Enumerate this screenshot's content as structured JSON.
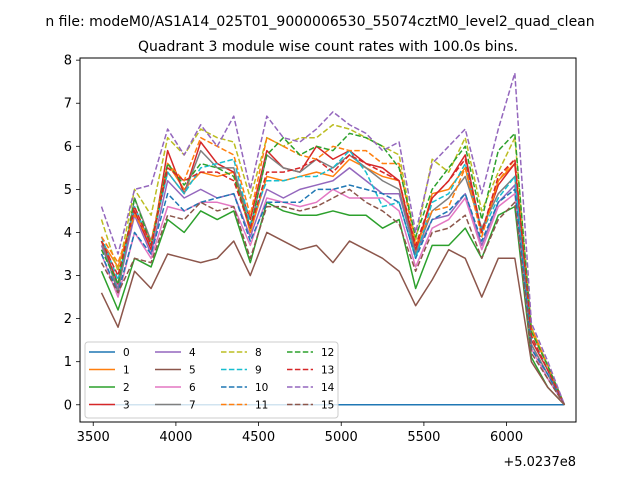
{
  "chart_data": {
    "type": "line",
    "suptitle": "n file: modeM0/AS1A14_025T01_9000006530_55074cztM0_level2_quad_clean",
    "title": "Quadrant 3 module wise count rates with 100.0s bins.",
    "xlabel": "",
    "ylabel": "",
    "x_offset_label": "+5.0237e8",
    "xlim": [
      3420,
      6420
    ],
    "ylim": [
      -0.4,
      8.05
    ],
    "xticks": [
      3500,
      4000,
      4500,
      5000,
      5500,
      6000
    ],
    "xtick_labels": [
      "3500",
      "4000",
      "4500",
      "5000",
      "5500",
      "6000"
    ],
    "yticks": [
      0,
      1,
      2,
      3,
      4,
      5,
      6,
      7,
      8
    ],
    "ytick_labels": [
      "0",
      "1",
      "2",
      "3",
      "4",
      "5",
      "6",
      "7",
      "8"
    ],
    "grid": false,
    "legend_position": "lower-left",
    "legend_columns": 4,
    "x": [
      3550,
      3650,
      3750,
      3850,
      3950,
      4050,
      4150,
      4250,
      4350,
      4450,
      4550,
      4650,
      4750,
      4850,
      4950,
      5050,
      5150,
      5250,
      5350,
      5450,
      5550,
      5650,
      5750,
      5850,
      5950,
      6050,
      6150,
      6250,
      6350
    ],
    "series": [
      {
        "name": "0",
        "color": "#1f77b4",
        "dash": "solid",
        "values": [
          0,
          0,
          0,
          0,
          0,
          0,
          0,
          0,
          0,
          0,
          0,
          0,
          0,
          0,
          0,
          0,
          0,
          0,
          0,
          0,
          0,
          0,
          0,
          0,
          0,
          0,
          0,
          0,
          0
        ]
      },
      {
        "name": "1",
        "color": "#ff7f0e",
        "dash": "solid",
        "values": [
          3.8,
          3.2,
          4.5,
          3.6,
          5.6,
          5.0,
          5.4,
          5.3,
          5.4,
          4.0,
          5.3,
          5.2,
          5.3,
          5.4,
          5.3,
          5.7,
          5.5,
          5.3,
          5.2,
          3.5,
          4.9,
          5.0,
          5.5,
          4.0,
          5.2,
          5.6,
          1.7,
          0.9,
          0.0
        ]
      },
      {
        "name": "2",
        "color": "#2ca02c",
        "dash": "solid",
        "values": [
          3.1,
          2.2,
          3.4,
          3.2,
          4.3,
          4.0,
          4.5,
          4.3,
          4.5,
          3.3,
          4.7,
          4.5,
          4.4,
          4.4,
          4.5,
          4.4,
          4.4,
          4.1,
          4.3,
          2.7,
          3.7,
          3.7,
          4.1,
          3.4,
          4.4,
          4.6,
          1.1,
          0.4,
          0.0
        ]
      },
      {
        "name": "3",
        "color": "#d62728",
        "dash": "solid",
        "values": [
          3.8,
          2.8,
          4.5,
          3.6,
          5.9,
          4.9,
          6.1,
          5.6,
          5.4,
          4.3,
          5.9,
          5.5,
          5.4,
          6.0,
          5.7,
          5.9,
          5.6,
          5.5,
          5.2,
          3.6,
          4.8,
          5.2,
          5.8,
          4.0,
          5.1,
          5.6,
          1.5,
          0.8,
          0.0
        ]
      },
      {
        "name": "4",
        "color": "#9467bd",
        "dash": "solid",
        "values": [
          3.7,
          2.7,
          4.4,
          3.5,
          5.2,
          4.8,
          5.0,
          4.8,
          4.9,
          3.9,
          5.0,
          4.8,
          5.0,
          5.1,
          5.2,
          5.5,
          5.2,
          4.9,
          4.9,
          3.5,
          4.3,
          4.4,
          4.9,
          3.7,
          4.7,
          5.1,
          1.4,
          0.7,
          0.0
        ]
      },
      {
        "name": "5",
        "color": "#8c564b",
        "dash": "solid",
        "values": [
          2.6,
          1.8,
          3.1,
          2.7,
          3.5,
          3.4,
          3.3,
          3.4,
          3.8,
          3.0,
          4.0,
          3.8,
          3.6,
          3.7,
          3.3,
          3.8,
          3.6,
          3.4,
          3.1,
          2.3,
          2.9,
          3.6,
          3.4,
          2.5,
          3.4,
          3.4,
          1.0,
          0.4,
          0.0
        ]
      },
      {
        "name": "6",
        "color": "#e377c2",
        "dash": "solid",
        "values": [
          3.5,
          2.5,
          4.0,
          3.4,
          4.6,
          4.5,
          4.7,
          4.7,
          4.6,
          3.7,
          4.8,
          4.7,
          4.6,
          4.7,
          5.0,
          4.8,
          4.8,
          4.8,
          4.5,
          3.2,
          4.1,
          4.3,
          4.8,
          3.6,
          4.6,
          4.9,
          1.3,
          0.6,
          0.0
        ]
      },
      {
        "name": "7",
        "color": "#7f7f7f",
        "dash": "solid",
        "values": [
          3.8,
          2.6,
          4.8,
          3.8,
          5.4,
          4.9,
          5.9,
          5.5,
          5.5,
          4.1,
          5.8,
          5.5,
          5.4,
          5.7,
          5.5,
          5.8,
          5.5,
          5.2,
          5.0,
          3.5,
          4.5,
          4.8,
          5.3,
          4.1,
          4.9,
          5.3,
          1.4,
          0.7,
          0.0
        ]
      },
      {
        "name": "8",
        "color": "#bcbd22",
        "dash": "dashed",
        "values": [
          4.3,
          3.1,
          5.0,
          4.4,
          6.2,
          5.8,
          6.4,
          6.2,
          6.1,
          4.8,
          6.2,
          6.0,
          6.2,
          6.2,
          6.5,
          6.4,
          6.2,
          6.0,
          5.8,
          3.8,
          5.7,
          5.4,
          6.2,
          4.5,
          5.4,
          6.2,
          1.8,
          0.9,
          0.0
        ]
      },
      {
        "name": "9",
        "color": "#17becf",
        "dash": "dashed",
        "values": [
          3.9,
          2.9,
          4.6,
          3.7,
          5.4,
          4.9,
          5.5,
          5.6,
          5.7,
          4.2,
          5.2,
          5.2,
          5.3,
          5.3,
          5.5,
          5.9,
          5.4,
          4.6,
          4.7,
          3.4,
          4.7,
          4.9,
          5.6,
          4.0,
          4.8,
          5.3,
          1.6,
          0.8,
          0.0
        ]
      },
      {
        "name": "10",
        "color": "#1f77b4",
        "dash": "dashed",
        "values": [
          3.5,
          2.6,
          4.0,
          3.5,
          4.9,
          4.5,
          4.7,
          4.8,
          4.9,
          3.8,
          4.7,
          4.7,
          4.7,
          5.0,
          5.0,
          5.1,
          5.0,
          4.9,
          4.7,
          3.4,
          4.3,
          4.5,
          4.9,
          3.8,
          4.7,
          5.0,
          1.3,
          0.7,
          0.0
        ]
      },
      {
        "name": "11",
        "color": "#ff7f0e",
        "dash": "dashed",
        "values": [
          3.9,
          3.3,
          4.4,
          3.8,
          5.6,
          5.2,
          6.2,
          6.0,
          5.8,
          4.4,
          6.2,
          6.0,
          5.8,
          5.7,
          6.0,
          5.9,
          5.9,
          5.6,
          5.6,
          3.7,
          4.5,
          4.6,
          5.5,
          3.9,
          5.2,
          5.7,
          1.8,
          0.9,
          0.0
        ]
      },
      {
        "name": "12",
        "color": "#2ca02c",
        "dash": "dashed",
        "values": [
          3.6,
          2.8,
          4.8,
          3.7,
          5.6,
          5.1,
          5.6,
          5.5,
          5.3,
          4.1,
          5.8,
          6.2,
          5.8,
          6.0,
          5.9,
          6.3,
          6.2,
          6.0,
          5.5,
          3.9,
          5.0,
          5.5,
          6.0,
          4.3,
          5.9,
          6.3,
          1.7,
          0.9,
          0.0
        ]
      },
      {
        "name": "13",
        "color": "#d62728",
        "dash": "dashed",
        "values": [
          3.8,
          3.0,
          4.6,
          3.7,
          5.5,
          5.2,
          5.4,
          5.4,
          5.2,
          4.1,
          5.4,
          5.4,
          5.5,
          5.7,
          5.4,
          5.8,
          5.6,
          5.4,
          5.2,
          3.7,
          4.8,
          5.2,
          5.7,
          4.0,
          5.3,
          5.7,
          1.6,
          0.8,
          0.0
        ]
      },
      {
        "name": "14",
        "color": "#9467bd",
        "dash": "dashed",
        "values": [
          4.6,
          3.5,
          5.0,
          5.1,
          6.4,
          5.8,
          6.5,
          6.0,
          6.7,
          5.0,
          6.7,
          6.2,
          6.1,
          6.4,
          6.8,
          6.5,
          6.3,
          5.9,
          6.1,
          4.0,
          5.6,
          6.0,
          6.4,
          4.9,
          6.4,
          7.7,
          1.9,
          1.0,
          0.0
        ]
      },
      {
        "name": "15",
        "color": "#8c564b",
        "dash": "dashed",
        "values": [
          3.3,
          2.6,
          3.4,
          3.3,
          4.4,
          4.3,
          4.7,
          4.5,
          4.6,
          3.4,
          4.6,
          4.6,
          4.5,
          4.6,
          4.8,
          5.0,
          4.7,
          4.5,
          4.2,
          3.1,
          4.0,
          4.1,
          4.4,
          3.4,
          4.3,
          4.7,
          1.2,
          0.6,
          0.0
        ]
      }
    ]
  }
}
